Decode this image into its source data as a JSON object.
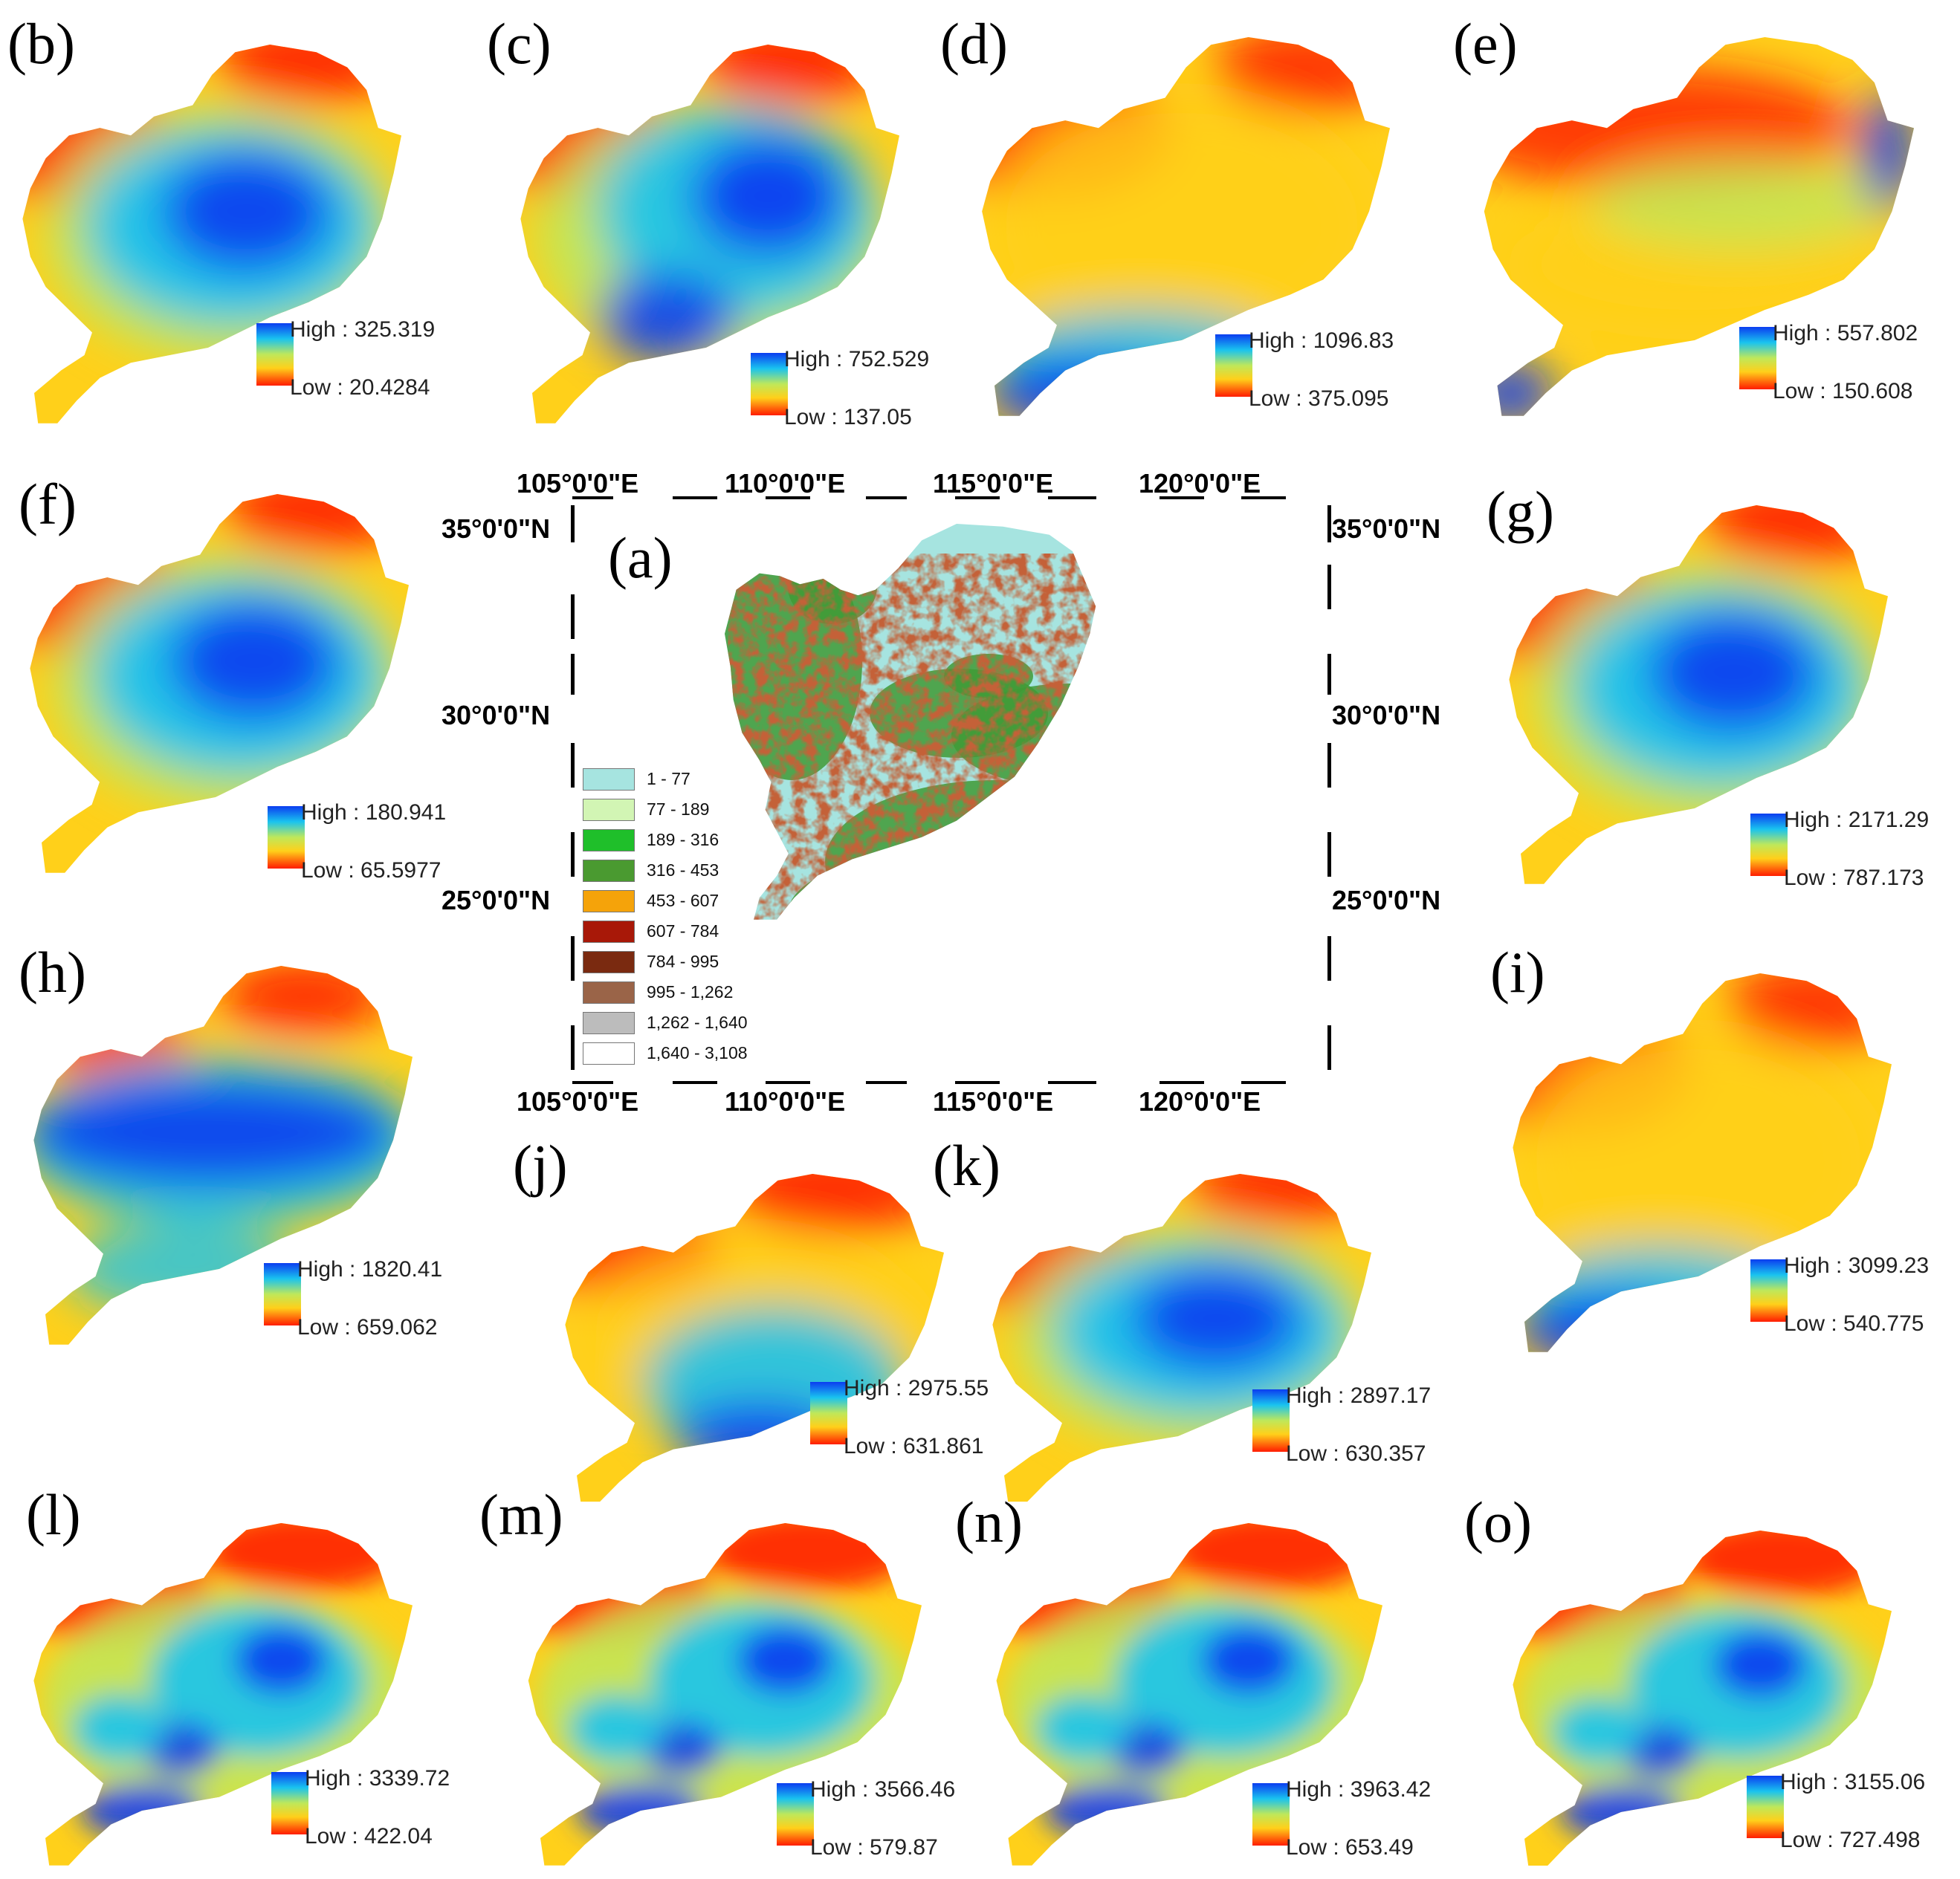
{
  "panels": [
    {
      "id": "b",
      "label": "(b)",
      "high": "High : 325.319",
      "low": "Low : 20.4284",
      "pattern": "center"
    },
    {
      "id": "c",
      "label": "(c)",
      "high": "High : 752.529",
      "low": "Low : 137.05",
      "pattern": "center2"
    },
    {
      "id": "d",
      "label": "(d)",
      "high": "High : 1096.83",
      "low": "Low : 375.095",
      "pattern": "south"
    },
    {
      "id": "e",
      "label": "(e)",
      "high": "High : 557.802",
      "low": "Low : 150.608",
      "pattern": "mixed"
    },
    {
      "id": "f",
      "label": "(f)",
      "high": "High : 180.941",
      "low": "Low : 65.5977",
      "pattern": "center"
    },
    {
      "id": "g",
      "label": "(g)",
      "high": "High : 2171.29",
      "low": "Low : 787.173",
      "pattern": "center"
    },
    {
      "id": "h",
      "label": "(h)",
      "high": "High : 1820.41",
      "low": "Low : 659.062",
      "pattern": "band"
    },
    {
      "id": "i",
      "label": "(i)",
      "high": "High : 3099.23",
      "low": "Low : 540.775",
      "pattern": "south"
    },
    {
      "id": "j",
      "label": "(j)",
      "high": "High : 2975.55",
      "low": "Low : 631.861",
      "pattern": "southcenter"
    },
    {
      "id": "k",
      "label": "(k)",
      "high": "High : 2897.17",
      "low": "Low : 630.357",
      "pattern": "center"
    },
    {
      "id": "l",
      "label": "(l)",
      "high": "High : 3339.72",
      "low": "Low : 422.04",
      "pattern": "patchy"
    },
    {
      "id": "m",
      "label": "(m)",
      "high": "High : 3566.46",
      "low": "Low : 579.87",
      "pattern": "patchy"
    },
    {
      "id": "n",
      "label": "(n)",
      "high": "High : 3963.42",
      "low": "Low : 653.49",
      "pattern": "patchy"
    },
    {
      "id": "o",
      "label": "(o)",
      "high": "High : 3155.06",
      "low": "Low : 727.498",
      "pattern": "patchy"
    }
  ],
  "main_map": {
    "label": "(a)",
    "longitudes": [
      "105°0'0\"E",
      "110°0'0\"E",
      "115°0'0\"E",
      "120°0'0\"E"
    ],
    "latitudes": [
      "35°0'0\"N",
      "30°0'0\"N",
      "25°0'0\"N"
    ],
    "legend": [
      {
        "range": "1 - 77",
        "color": "#a6e4e0"
      },
      {
        "range": "77 - 189",
        "color": "#d2f5b4"
      },
      {
        "range": "189 - 316",
        "color": "#1fbf2a"
      },
      {
        "range": "316 - 453",
        "color": "#4a9a30"
      },
      {
        "range": "453 - 607",
        "color": "#f5a30a"
      },
      {
        "range": "607 - 784",
        "color": "#a81808"
      },
      {
        "range": "784 - 995",
        "color": "#7a2a10"
      },
      {
        "range": "995 - 1,262",
        "color": "#9a6448"
      },
      {
        "range": "1,262 - 1,640",
        "color": "#bcbcbc"
      },
      {
        "range": "1,640 - 3,108",
        "color": "#ffffff"
      }
    ]
  },
  "colors": {
    "ramp": [
      "#0b3df0",
      "#19c3ef",
      "#bfe85a",
      "#ffd01a",
      "#ff1c00"
    ]
  }
}
